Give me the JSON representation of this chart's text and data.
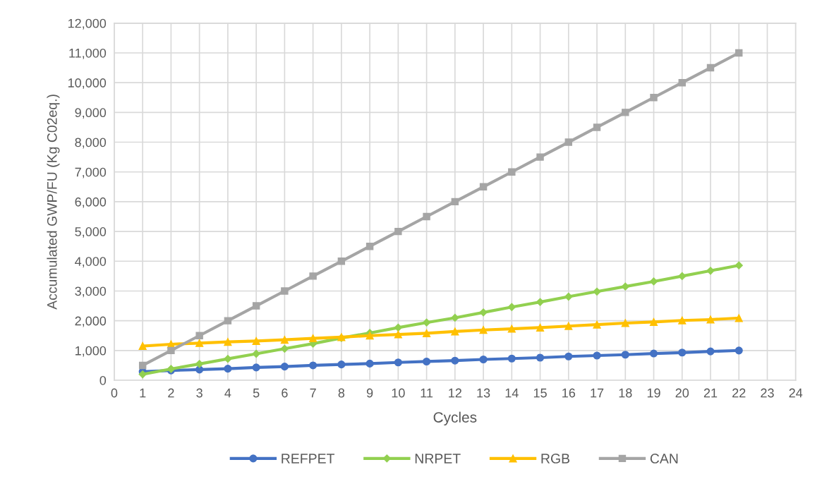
{
  "chart_data": {
    "type": "line",
    "xlabel": "Cycles",
    "ylabel": "Accumulated GWP/FU (Kg C02eq.)",
    "x": [
      1,
      2,
      3,
      4,
      5,
      6,
      7,
      8,
      9,
      10,
      11,
      12,
      13,
      14,
      15,
      16,
      17,
      18,
      19,
      20,
      21,
      22
    ],
    "series": [
      {
        "name": "REFPET",
        "color": "#4472c4",
        "marker": "circle",
        "values": [
          290,
          330,
          360,
          390,
          430,
          460,
          500,
          530,
          560,
          600,
          630,
          660,
          700,
          730,
          760,
          800,
          830,
          860,
          900,
          930,
          970,
          1000
        ]
      },
      {
        "name": "NRPET",
        "color": "#92d050",
        "marker": "diamond",
        "values": [
          200,
          380,
          550,
          720,
          890,
          1060,
          1230,
          1420,
          1590,
          1770,
          1940,
          2100,
          2280,
          2460,
          2630,
          2810,
          2980,
          3150,
          3320,
          3500,
          3680,
          3860
        ]
      },
      {
        "name": "RGB",
        "color": "#ffc000",
        "marker": "triangle",
        "values": [
          1150,
          1210,
          1250,
          1290,
          1320,
          1360,
          1410,
          1450,
          1500,
          1540,
          1580,
          1640,
          1690,
          1730,
          1770,
          1820,
          1870,
          1920,
          1960,
          2010,
          2040,
          2090
        ]
      },
      {
        "name": "CAN",
        "color": "#a5a5a5",
        "marker": "square",
        "values": [
          500,
          1000,
          1500,
          2000,
          2500,
          3000,
          3500,
          4000,
          4500,
          5000,
          5500,
          6000,
          6500,
          7000,
          7500,
          8000,
          8500,
          9000,
          9500,
          10000,
          10500,
          11000
        ]
      }
    ],
    "xlim": [
      0,
      24
    ],
    "xticks": [
      0,
      1,
      2,
      3,
      4,
      5,
      6,
      7,
      8,
      9,
      10,
      11,
      12,
      13,
      14,
      15,
      16,
      17,
      18,
      19,
      20,
      21,
      22,
      23,
      24
    ],
    "ylim": [
      0,
      12000
    ],
    "yticks": [
      0,
      {
        "value": 1000,
        "label": "1,000"
      },
      {
        "value": 2000,
        "label": "2,000"
      },
      {
        "value": 3000,
        "label": "3,000"
      },
      {
        "value": 4000,
        "label": "4,000"
      },
      {
        "value": 5000,
        "label": "5,000"
      },
      {
        "value": 6000,
        "label": "6,000"
      },
      {
        "value": 7000,
        "label": "7,000"
      },
      {
        "value": 8000,
        "label": "8,000"
      },
      {
        "value": 9000,
        "label": "9,000"
      },
      {
        "value": 10000,
        "label": "10,000"
      },
      {
        "value": 11000,
        "label": "11,000"
      },
      {
        "value": 12000,
        "label": "12,000"
      }
    ],
    "grid": true,
    "legend": "bottom",
    "line_style": "solid"
  }
}
